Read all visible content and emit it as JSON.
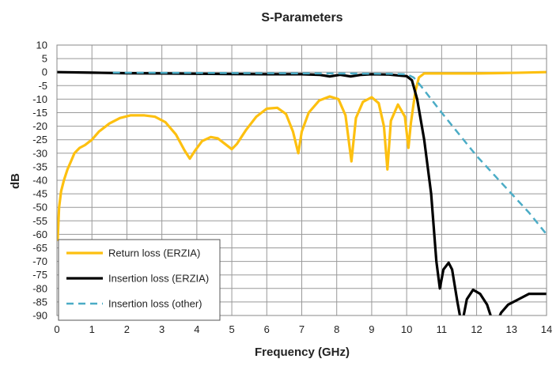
{
  "chart_data": {
    "type": "line",
    "title": "S-Parameters",
    "xlabel": "Frequency (GHz)",
    "ylabel": "dB",
    "xlim": [
      0,
      14
    ],
    "ylim": [
      -90,
      10
    ],
    "xticks": [
      0,
      1,
      2,
      3,
      4,
      5,
      6,
      7,
      8,
      9,
      10,
      11,
      12,
      13,
      14
    ],
    "yticks": [
      10,
      5,
      0,
      -5,
      -10,
      -15,
      -20,
      -25,
      -30,
      -35,
      -40,
      -45,
      -50,
      -55,
      -60,
      -65,
      -70,
      -75,
      -80,
      -85,
      -90
    ],
    "grid": true,
    "legend_position": "bottom-left",
    "series": [
      {
        "name": "Return loss (ERZIA)",
        "color": "#FDC010",
        "style": "solid",
        "points": [
          [
            0.02,
            -62
          ],
          [
            0.06,
            -50
          ],
          [
            0.12,
            -44
          ],
          [
            0.2,
            -40
          ],
          [
            0.3,
            -36
          ],
          [
            0.4,
            -33
          ],
          [
            0.5,
            -30
          ],
          [
            0.65,
            -28
          ],
          [
            0.8,
            -27
          ],
          [
            1.0,
            -25
          ],
          [
            1.2,
            -22
          ],
          [
            1.5,
            -19
          ],
          [
            1.8,
            -17
          ],
          [
            2.1,
            -16
          ],
          [
            2.5,
            -16
          ],
          [
            2.8,
            -16.5
          ],
          [
            3.1,
            -18.5
          ],
          [
            3.4,
            -23
          ],
          [
            3.65,
            -29
          ],
          [
            3.8,
            -32
          ],
          [
            3.95,
            -29
          ],
          [
            4.15,
            -25.5
          ],
          [
            4.4,
            -24
          ],
          [
            4.6,
            -24.5
          ],
          [
            4.8,
            -26.5
          ],
          [
            5.0,
            -28.5
          ],
          [
            5.15,
            -26.5
          ],
          [
            5.4,
            -21.5
          ],
          [
            5.7,
            -16.5
          ],
          [
            6.0,
            -13.5
          ],
          [
            6.3,
            -13.2
          ],
          [
            6.55,
            -15.5
          ],
          [
            6.75,
            -22
          ],
          [
            6.9,
            -30
          ],
          [
            7.0,
            -22
          ],
          [
            7.2,
            -15
          ],
          [
            7.5,
            -10.5
          ],
          [
            7.8,
            -9
          ],
          [
            8.05,
            -10
          ],
          [
            8.25,
            -16
          ],
          [
            8.42,
            -33
          ],
          [
            8.55,
            -17
          ],
          [
            8.75,
            -11
          ],
          [
            9.0,
            -9.3
          ],
          [
            9.2,
            -11.5
          ],
          [
            9.35,
            -20
          ],
          [
            9.45,
            -36
          ],
          [
            9.55,
            -18
          ],
          [
            9.75,
            -12
          ],
          [
            9.95,
            -16.5
          ],
          [
            10.05,
            -28
          ],
          [
            10.12,
            -19
          ],
          [
            10.25,
            -7
          ],
          [
            10.35,
            -2
          ],
          [
            10.5,
            -0.5
          ],
          [
            11.0,
            -0.5
          ],
          [
            12.0,
            -0.5
          ],
          [
            13.0,
            -0.3
          ],
          [
            14.0,
            0
          ]
        ]
      },
      {
        "name": "Insertion loss (ERZIA)",
        "color": "#000000",
        "style": "solid",
        "points": [
          [
            0,
            0
          ],
          [
            1,
            -0.2
          ],
          [
            2,
            -0.4
          ],
          [
            3,
            -0.5
          ],
          [
            4,
            -0.6
          ],
          [
            5,
            -0.7
          ],
          [
            6,
            -0.8
          ],
          [
            7,
            -0.8
          ],
          [
            7.5,
            -1.0
          ],
          [
            7.8,
            -1.6
          ],
          [
            8.1,
            -1.0
          ],
          [
            8.4,
            -1.6
          ],
          [
            8.7,
            -1.0
          ],
          [
            9.0,
            -0.8
          ],
          [
            9.5,
            -0.9
          ],
          [
            10.0,
            -1.5
          ],
          [
            10.15,
            -3
          ],
          [
            10.3,
            -10
          ],
          [
            10.5,
            -25
          ],
          [
            10.7,
            -45
          ],
          [
            10.85,
            -70
          ],
          [
            10.95,
            -80
          ],
          [
            11.05,
            -73
          ],
          [
            11.2,
            -70.5
          ],
          [
            11.3,
            -73
          ],
          [
            11.45,
            -85
          ],
          [
            11.55,
            -92
          ],
          [
            11.6,
            -92
          ],
          [
            11.72,
            -84
          ],
          [
            11.9,
            -80.5
          ],
          [
            12.1,
            -82
          ],
          [
            12.3,
            -86
          ],
          [
            12.45,
            -92
          ],
          [
            12.6,
            -92
          ],
          [
            12.7,
            -89
          ],
          [
            12.9,
            -86
          ],
          [
            13.2,
            -84
          ],
          [
            13.5,
            -82
          ],
          [
            13.8,
            -82
          ],
          [
            14.0,
            -82
          ]
        ]
      },
      {
        "name": "Insertion loss (other)",
        "color": "#4BACC6",
        "style": "dashed",
        "points": [
          [
            1.6,
            -0.2
          ],
          [
            4,
            -0.3
          ],
          [
            6,
            -0.4
          ],
          [
            8,
            -0.5
          ],
          [
            9.5,
            -0.6
          ],
          [
            10.0,
            -0.8
          ],
          [
            10.2,
            -2
          ],
          [
            10.4,
            -5
          ],
          [
            10.7,
            -10
          ],
          [
            11,
            -15
          ],
          [
            11.5,
            -23
          ],
          [
            12,
            -31
          ],
          [
            12.5,
            -38
          ],
          [
            13,
            -45
          ],
          [
            13.5,
            -52
          ],
          [
            14.0,
            -60
          ]
        ]
      }
    ]
  }
}
